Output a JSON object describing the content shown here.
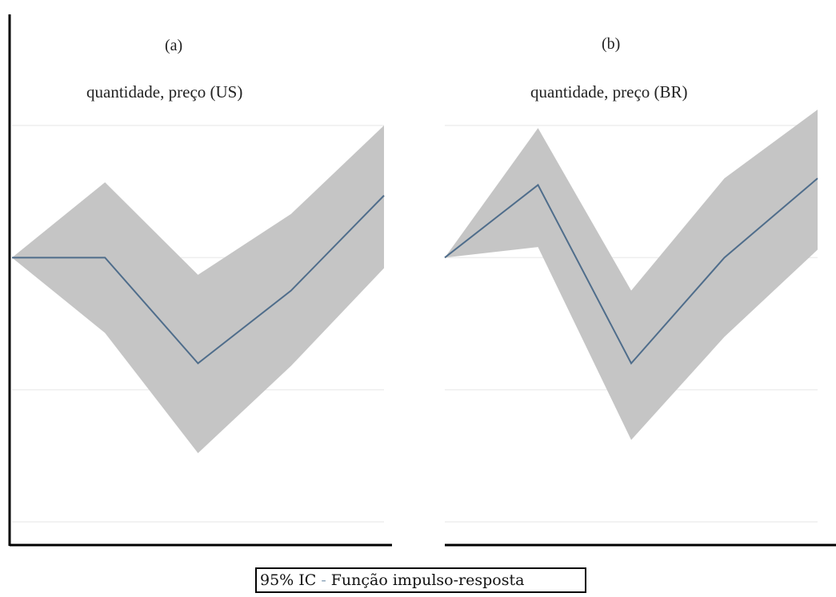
{
  "chart_data": [
    {
      "type": "area",
      "panel_label": "(a)",
      "title": "quantidade, preço (US)",
      "xlabel": "",
      "ylabel": "",
      "x": [
        0,
        1,
        2,
        3,
        4
      ],
      "series": [
        {
          "role": "estimate",
          "values": [
            0.0,
            0.0,
            -0.8,
            -0.25,
            0.47
          ]
        },
        {
          "role": "ci_upper",
          "values": [
            0.0,
            0.57,
            -0.13,
            0.33,
            1.0
          ]
        },
        {
          "role": "ci_lower",
          "values": [
            0.0,
            -0.57,
            -1.48,
            -0.82,
            -0.08
          ]
        }
      ],
      "ylim": [
        -2.0,
        1.0
      ],
      "grid": true,
      "colors": {
        "band": "#c5c5c5",
        "line": "#4f6d8b",
        "grid": "#eeeeee"
      }
    },
    {
      "type": "area",
      "panel_label": "(b)",
      "title": "quantidade, preço (BR)",
      "xlabel": "",
      "ylabel": "",
      "x": [
        0,
        1,
        2,
        3,
        4
      ],
      "series": [
        {
          "role": "estimate",
          "values": [
            0.0,
            0.55,
            -0.8,
            0.0,
            0.6
          ]
        },
        {
          "role": "ci_upper",
          "values": [
            0.0,
            0.98,
            -0.25,
            0.6,
            1.12
          ]
        },
        {
          "role": "ci_lower",
          "values": [
            0.0,
            0.08,
            -1.38,
            -0.6,
            0.06
          ]
        }
      ],
      "ylim": [
        -2.0,
        1.0
      ],
      "grid": true,
      "colors": {
        "band": "#c5c5c5",
        "line": "#4f6d8b",
        "grid": "#eeeeee"
      }
    }
  ],
  "legend": {
    "ci_label": "95% IC",
    "irf_label": "Função impulso-resposta"
  }
}
